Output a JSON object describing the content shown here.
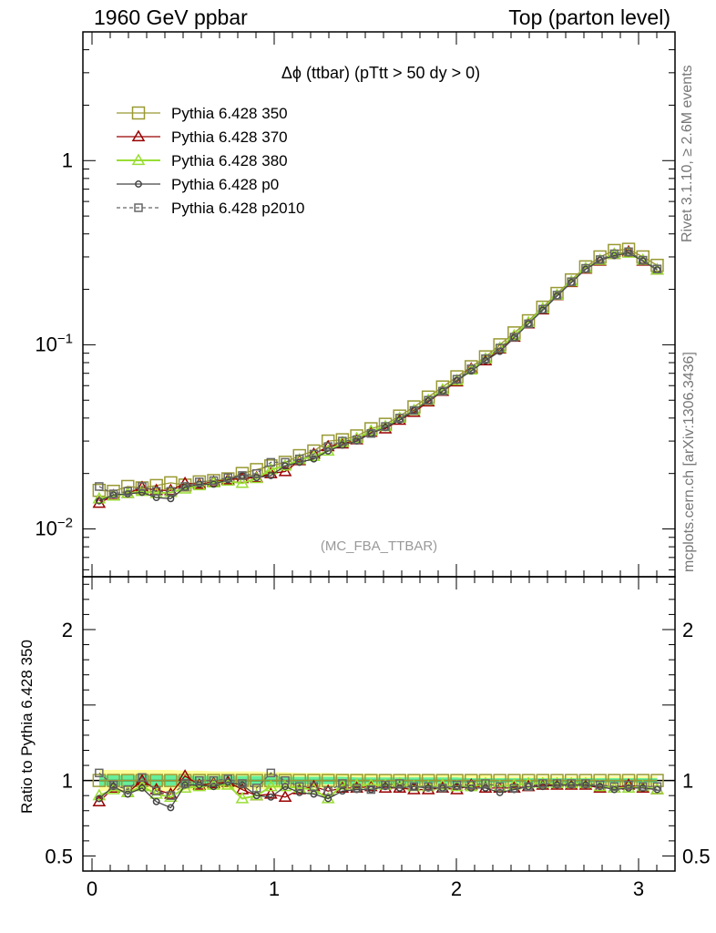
{
  "header": {
    "left": "1960 GeV ppbar",
    "right": "Top (parton level)"
  },
  "side_labels": {
    "rivet": "Rivet 3.1.10, ≥ 2.6M events",
    "mcplots": "mcplots.cern.ch [arXiv:1306.3436]"
  },
  "chart_data": [
    {
      "type": "line",
      "title": "Δϕ (ttbar) (pTtt > 50 dy > 0)",
      "watermark": "(MC_FBA_TTBAR)",
      "log_y": true,
      "xlim": [
        -0.05,
        3.2
      ],
      "ylim": [
        0.0055,
        5.0
      ],
      "y_ticks": [
        {
          "v": 0.01,
          "base": "10",
          "exp": "−2"
        },
        {
          "v": 0.1,
          "base": "10",
          "exp": "−1"
        },
        {
          "v": 1,
          "base": "1",
          "exp": ""
        }
      ],
      "legend_position": "top-left",
      "x": [
        0.0393,
        0.1178,
        0.1963,
        0.2749,
        0.3534,
        0.432,
        0.5105,
        0.589,
        0.6676,
        0.7461,
        0.8247,
        0.9032,
        0.9817,
        1.0603,
        1.1388,
        1.2174,
        1.2959,
        1.3744,
        1.453,
        1.5315,
        1.6101,
        1.6886,
        1.7671,
        1.8457,
        1.9242,
        2.0028,
        2.0813,
        2.1598,
        2.2384,
        2.3169,
        2.3955,
        2.474,
        2.5525,
        2.6311,
        2.7096,
        2.7882,
        2.8667,
        2.9452,
        3.0238,
        3.1023
      ],
      "series": [
        {
          "name": "Pythia 6.428 350",
          "color": "#999933",
          "marker": "square",
          "dashed": false,
          "values": [
            0.0162,
            0.016,
            0.017,
            0.0167,
            0.0172,
            0.0178,
            0.0173,
            0.018,
            0.0183,
            0.0187,
            0.02,
            0.021,
            0.022,
            0.023,
            0.025,
            0.0265,
            0.03,
            0.0305,
            0.032,
            0.035,
            0.037,
            0.041,
            0.046,
            0.052,
            0.059,
            0.067,
            0.076,
            0.086,
            0.1,
            0.116,
            0.135,
            0.16,
            0.19,
            0.225,
            0.265,
            0.3,
            0.325,
            0.33,
            0.3,
            0.27
          ],
          "ratio": [
            1.0,
            1.0,
            1.0,
            1.0,
            1.0,
            1.0,
            1.0,
            1.0,
            1.0,
            1.0,
            1.0,
            1.0,
            1.0,
            1.0,
            1.0,
            1.0,
            1.0,
            1.0,
            1.0,
            1.0,
            1.0,
            1.0,
            1.0,
            1.0,
            1.0,
            1.0,
            1.0,
            1.0,
            1.0,
            1.0,
            1.0,
            1.0,
            1.0,
            1.0,
            1.0,
            1.0,
            1.0,
            1.0,
            1.0,
            1.0
          ]
        },
        {
          "name": "Pythia 6.428 370",
          "color": "#990000",
          "marker": "triangle",
          "dashed": false,
          "values": [
            0.0138,
            0.0152,
            0.0156,
            0.0168,
            0.0162,
            0.0162,
            0.0177,
            0.0175,
            0.018,
            0.0185,
            0.0188,
            0.019,
            0.02,
            0.0205,
            0.0235,
            0.0255,
            0.028,
            0.029,
            0.0305,
            0.0335,
            0.035,
            0.039,
            0.043,
            0.049,
            0.056,
            0.063,
            0.074,
            0.082,
            0.095,
            0.11,
            0.13,
            0.155,
            0.185,
            0.218,
            0.258,
            0.285,
            0.31,
            0.32,
            0.285,
            0.255
          ],
          "ratio": [
            0.86,
            0.95,
            0.92,
            1.0,
            0.94,
            0.91,
            1.03,
            0.97,
            0.98,
            0.99,
            0.94,
            0.9,
            0.91,
            0.89,
            0.94,
            0.96,
            0.93,
            0.95,
            0.95,
            0.96,
            0.95,
            0.95,
            0.94,
            0.94,
            0.95,
            0.94,
            0.97,
            0.95,
            0.95,
            0.95,
            0.96,
            0.97,
            0.97,
            0.97,
            0.97,
            0.95,
            0.95,
            0.97,
            0.95,
            0.94
          ]
        },
        {
          "name": "Pythia 6.428 380",
          "color": "#99dd33",
          "marker": "triangle",
          "dashed": false,
          "values": [
            0.0146,
            0.0151,
            0.0156,
            0.016,
            0.0156,
            0.0158,
            0.0165,
            0.0172,
            0.0178,
            0.0182,
            0.0177,
            0.0188,
            0.021,
            0.022,
            0.0238,
            0.0248,
            0.0265,
            0.0295,
            0.031,
            0.034,
            0.036,
            0.04,
            0.044,
            0.05,
            0.057,
            0.064,
            0.073,
            0.084,
            0.096,
            0.112,
            0.132,
            0.157,
            0.186,
            0.22,
            0.26,
            0.288,
            0.31,
            0.315,
            0.288,
            0.255
          ],
          "ratio": [
            0.9,
            0.94,
            0.92,
            0.96,
            0.91,
            0.89,
            0.95,
            0.96,
            0.97,
            0.97,
            0.88,
            0.9,
            0.96,
            0.96,
            0.95,
            0.94,
            0.88,
            0.97,
            0.97,
            0.97,
            0.97,
            0.98,
            0.96,
            0.96,
            0.97,
            0.96,
            0.96,
            0.98,
            0.96,
            0.97,
            0.98,
            0.98,
            0.98,
            0.98,
            0.98,
            0.96,
            0.95,
            0.95,
            0.96,
            0.94
          ]
        },
        {
          "name": "Pythia 6.428 p0",
          "color": "#444444",
          "marker": "circle",
          "dashed": false,
          "values": [
            0.0142,
            0.0153,
            0.0155,
            0.0158,
            0.0148,
            0.0146,
            0.0168,
            0.0175,
            0.0175,
            0.0185,
            0.0195,
            0.019,
            0.0195,
            0.022,
            0.023,
            0.024,
            0.0265,
            0.0285,
            0.03,
            0.033,
            0.0355,
            0.039,
            0.044,
            0.0495,
            0.056,
            0.064,
            0.072,
            0.082,
            0.092,
            0.109,
            0.13,
            0.154,
            0.184,
            0.218,
            0.257,
            0.288,
            0.305,
            0.315,
            0.285,
            0.255
          ],
          "ratio": [
            0.88,
            0.96,
            0.91,
            0.95,
            0.86,
            0.82,
            0.97,
            0.97,
            0.96,
            0.99,
            0.97,
            0.9,
            0.89,
            0.96,
            0.92,
            0.91,
            0.88,
            0.93,
            0.94,
            0.94,
            0.96,
            0.95,
            0.96,
            0.95,
            0.95,
            0.96,
            0.95,
            0.95,
            0.92,
            0.94,
            0.96,
            0.96,
            0.97,
            0.97,
            0.97,
            0.96,
            0.94,
            0.95,
            0.95,
            0.94
          ]
        },
        {
          "name": "Pythia 6.428 p2010",
          "color": "#666666",
          "marker": "square",
          "dashed": true,
          "values": [
            0.017,
            0.0155,
            0.016,
            0.017,
            0.016,
            0.016,
            0.017,
            0.018,
            0.0183,
            0.019,
            0.0195,
            0.02,
            0.023,
            0.023,
            0.024,
            0.0255,
            0.028,
            0.03,
            0.0305,
            0.033,
            0.036,
            0.04,
            0.044,
            0.05,
            0.056,
            0.065,
            0.074,
            0.084,
            0.096,
            0.11,
            0.13,
            0.156,
            0.186,
            0.22,
            0.26,
            0.29,
            0.312,
            0.32,
            0.288,
            0.258
          ],
          "ratio": [
            1.05,
            0.97,
            0.94,
            1.02,
            0.93,
            0.9,
            0.98,
            1.0,
            1.0,
            1.01,
            0.98,
            0.95,
            1.05,
            1.0,
            0.96,
            0.96,
            0.93,
            0.98,
            0.95,
            0.94,
            0.97,
            0.98,
            0.96,
            0.96,
            0.95,
            0.97,
            0.97,
            0.98,
            0.96,
            0.95,
            0.96,
            0.98,
            0.98,
            0.98,
            0.98,
            0.97,
            0.96,
            0.97,
            0.96,
            0.96
          ]
        }
      ]
    },
    {
      "type": "line",
      "ylabel": "Ratio to Pythia 6.428 350",
      "xlim": [
        -0.05,
        3.2
      ],
      "ylim": [
        0.4,
        2.35
      ],
      "x_ticks": [
        {
          "v": 0,
          "label": "0"
        },
        {
          "v": 1,
          "label": "1"
        },
        {
          "v": 2,
          "label": "2"
        },
        {
          "v": 3,
          "label": "3"
        }
      ],
      "y_ticks": [
        {
          "v": 0.5,
          "label": "0.5"
        },
        {
          "v": 1,
          "label": "1"
        },
        {
          "v": 2,
          "label": "2"
        }
      ],
      "reference_line": 1.0,
      "band_colors": {
        "outer": "#ffff99",
        "inner": "#66ee99"
      },
      "band_outer": [
        0.07,
        0.07,
        0.07,
        0.07,
        0.07,
        0.07,
        0.065,
        0.065,
        0.06,
        0.06,
        0.06,
        0.06,
        0.055,
        0.055,
        0.05,
        0.05,
        0.05,
        0.045,
        0.045,
        0.045,
        0.04,
        0.04,
        0.04,
        0.04,
        0.035,
        0.035,
        0.035,
        0.035,
        0.03,
        0.03,
        0.03,
        0.03,
        0.03,
        0.03,
        0.03,
        0.03,
        0.03,
        0.03,
        0.03,
        0.03
      ],
      "band_inner": [
        0.035,
        0.035,
        0.035,
        0.035,
        0.035,
        0.035,
        0.03,
        0.03,
        0.03,
        0.03,
        0.03,
        0.03,
        0.03,
        0.025,
        0.025,
        0.025,
        0.025,
        0.025,
        0.02,
        0.02,
        0.02,
        0.02,
        0.02,
        0.02,
        0.02,
        0.02,
        0.015,
        0.015,
        0.015,
        0.015,
        0.015,
        0.015,
        0.015,
        0.015,
        0.015,
        0.015,
        0.015,
        0.015,
        0.015,
        0.015
      ]
    }
  ]
}
